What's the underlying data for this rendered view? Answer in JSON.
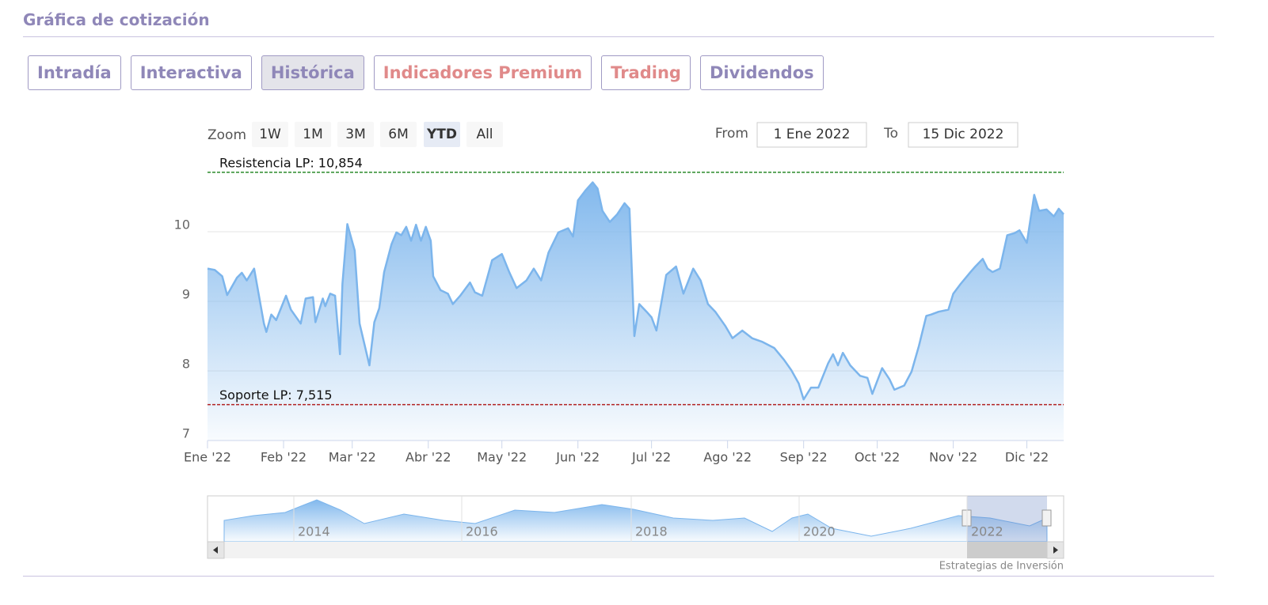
{
  "header": {
    "title": "Gráfica de cotización"
  },
  "tabs": [
    {
      "label": "Intradía",
      "active": false,
      "color": "#8f87b8"
    },
    {
      "label": "Interactiva",
      "active": false,
      "color": "#8f87b8"
    },
    {
      "label": "Histórica",
      "active": true,
      "color": "#8f87b8"
    },
    {
      "label": "Indicadores Premium",
      "active": false,
      "color": "#e08a8a"
    },
    {
      "label": "Trading",
      "active": false,
      "color": "#e08a8a"
    },
    {
      "label": "Dividendos",
      "active": false,
      "color": "#8f87b8"
    }
  ],
  "range_selector": {
    "zoom_label": "Zoom",
    "buttons": [
      {
        "label": "1W",
        "selected": false
      },
      {
        "label": "1M",
        "selected": false
      },
      {
        "label": "3M",
        "selected": false
      },
      {
        "label": "6M",
        "selected": false
      },
      {
        "label": "YTD",
        "selected": true
      },
      {
        "label": "All",
        "selected": false
      }
    ],
    "from_label": "From",
    "from": "1 Ene 2022",
    "to_label": "To",
    "to": "15 Dic 2022"
  },
  "chart_data": {
    "type": "area",
    "color": "#7cb5ec",
    "x": [
      0,
      3,
      6,
      8,
      12,
      14,
      16,
      19,
      23,
      24,
      26,
      28,
      32,
      34,
      38,
      40,
      43,
      44,
      47,
      48,
      50,
      52,
      54,
      55,
      57,
      60,
      62,
      66,
      68,
      70,
      72,
      75,
      77,
      79,
      81,
      83,
      85,
      87,
      89,
      91,
      92,
      95,
      98,
      100,
      103,
      107,
      109,
      112,
      116,
      120,
      123,
      126,
      130,
      133,
      136,
      139,
      143,
      147,
      149,
      151,
      154,
      157,
      159,
      161,
      164,
      167,
      170,
      172,
      174,
      176,
      179,
      181,
      183,
      187,
      191,
      194,
      198,
      201,
      204,
      207,
      211,
      214,
      218,
      222,
      226,
      231,
      235,
      238,
      241,
      243,
      246,
      249,
      253,
      255,
      257,
      259,
      262,
      266,
      269,
      271,
      275,
      278,
      280,
      284,
      287,
      290,
      293,
      295,
      298,
      302,
      304,
      307,
      311,
      313,
      316,
      318,
      320,
      323,
      326,
      329,
      331,
      334,
      337,
      339,
      342,
      345,
      347,
      349
    ],
    "values": [
      9.47,
      9.45,
      9.36,
      9.09,
      9.34,
      9.41,
      9.3,
      9.47,
      8.68,
      8.56,
      8.81,
      8.73,
      9.08,
      8.88,
      8.68,
      9.04,
      9.06,
      8.7,
      9.04,
      8.93,
      9.11,
      9.08,
      8.24,
      9.25,
      10.11,
      9.73,
      8.68,
      8.08,
      8.7,
      8.9,
      9.42,
      9.82,
      9.99,
      9.95,
      10.07,
      9.87,
      10.1,
      9.87,
      10.07,
      9.87,
      9.36,
      9.16,
      9.11,
      8.96,
      9.08,
      9.27,
      9.13,
      9.08,
      9.59,
      9.68,
      9.42,
      9.19,
      9.3,
      9.47,
      9.3,
      9.7,
      9.99,
      10.05,
      9.93,
      10.45,
      10.59,
      10.71,
      10.62,
      10.3,
      10.14,
      10.25,
      10.41,
      10.33,
      8.5,
      8.96,
      8.85,
      8.77,
      8.58,
      9.38,
      9.5,
      9.11,
      9.47,
      9.3,
      8.96,
      8.85,
      8.65,
      8.47,
      8.58,
      8.47,
      8.42,
      8.33,
      8.16,
      8.01,
      7.82,
      7.59,
      7.76,
      7.76,
      8.11,
      8.24,
      8.08,
      8.26,
      8.08,
      7.93,
      7.9,
      7.67,
      8.04,
      7.88,
      7.73,
      7.79,
      7.99,
      8.36,
      8.79,
      8.81,
      8.85,
      8.88,
      9.11,
      9.25,
      9.42,
      9.5,
      9.61,
      9.47,
      9.42,
      9.47,
      9.95,
      9.98,
      10.02,
      9.84,
      10.53,
      10.3,
      10.32,
      10.22,
      10.33,
      10.25
    ],
    "xlim": [
      0,
      349
    ],
    "xticks": [
      {
        "value": 0,
        "label": "Ene '22"
      },
      {
        "value": 31,
        "label": "Feb '22"
      },
      {
        "value": 59,
        "label": "Mar '22"
      },
      {
        "value": 90,
        "label": "Abr '22"
      },
      {
        "value": 120,
        "label": "May '22"
      },
      {
        "value": 151,
        "label": "Jun '22"
      },
      {
        "value": 181,
        "label": "Jul '22"
      },
      {
        "value": 212,
        "label": "Ago '22"
      },
      {
        "value": 243,
        "label": "Sep '22"
      },
      {
        "value": 273,
        "label": "Oct '22"
      },
      {
        "value": 304,
        "label": "Nov '22"
      },
      {
        "value": 334,
        "label": "Dic '22"
      }
    ],
    "ylim": [
      7,
      11
    ],
    "yticks": [
      7,
      8,
      9,
      10
    ],
    "grid": true,
    "annotations": [
      {
        "value": 10.854,
        "label": "Resistencia LP: 10,854",
        "color": "#2a8a2a"
      },
      {
        "value": 7.515,
        "label": "Soporte LP: 7,515",
        "color": "#b22222"
      }
    ]
  },
  "navigator": {
    "labels": [
      "2014",
      "2016",
      "2018",
      "2020",
      "2022"
    ]
  },
  "credits": "Estrategias de Inversión"
}
